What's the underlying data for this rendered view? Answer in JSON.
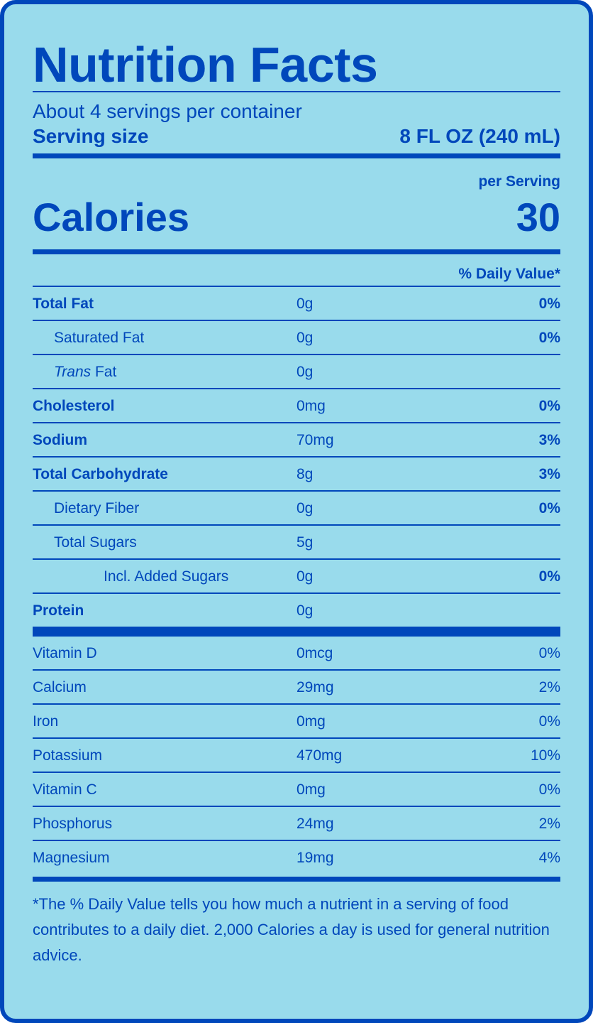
{
  "title": "Nutrition Facts",
  "servings_per_container": "About 4 servings per container",
  "serving_size_label": "Serving size",
  "serving_size_value": "8 FL OZ (240 mL)",
  "per_serving": "per Serving",
  "calories_label": "Calories",
  "calories_value": "30",
  "daily_value_header": "% Daily Value*",
  "nutrients": [
    {
      "name": "Total Fat",
      "amount": "0g",
      "dv": "0%"
    },
    {
      "name": "Saturated Fat",
      "amount": "0g",
      "dv": "0%"
    },
    {
      "name_italic": "Trans",
      "name": " Fat",
      "amount": "0g",
      "dv": ""
    },
    {
      "name": "Cholesterol",
      "amount": "0mg",
      "dv": "0%"
    },
    {
      "name": "Sodium",
      "amount": "70mg",
      "dv": "3%"
    },
    {
      "name": "Total Carbohydrate",
      "amount": "8g",
      "dv": "3%"
    },
    {
      "name": "Dietary Fiber",
      "amount": "0g",
      "dv": "0%"
    },
    {
      "name": "Total Sugars",
      "amount": "5g",
      "dv": ""
    },
    {
      "name": "Incl. Added Sugars",
      "amount": "0g",
      "dv": "0%"
    },
    {
      "name": "Protein",
      "amount": "0g",
      "dv": ""
    }
  ],
  "vitamins": [
    {
      "name": "Vitamin D",
      "amount": "0mcg",
      "dv": "0%"
    },
    {
      "name": "Calcium",
      "amount": "29mg",
      "dv": "2%"
    },
    {
      "name": "Iron",
      "amount": "0mg",
      "dv": "0%"
    },
    {
      "name": "Potassium",
      "amount": "470mg",
      "dv": "10%"
    },
    {
      "name": "Vitamin C",
      "amount": "0mg",
      "dv": "0%"
    },
    {
      "name": "Phosphorus",
      "amount": "24mg",
      "dv": "2%"
    },
    {
      "name": "Magnesium",
      "amount": "19mg",
      "dv": "4%"
    }
  ],
  "footnote": "*The % Daily Value tells you how much a nutrient in a serving of food contributes to a daily diet. 2,000 Calories a day is used for general nutrition advice.",
  "colors": {
    "background": "#99dbec",
    "ink": "#0047bb"
  }
}
